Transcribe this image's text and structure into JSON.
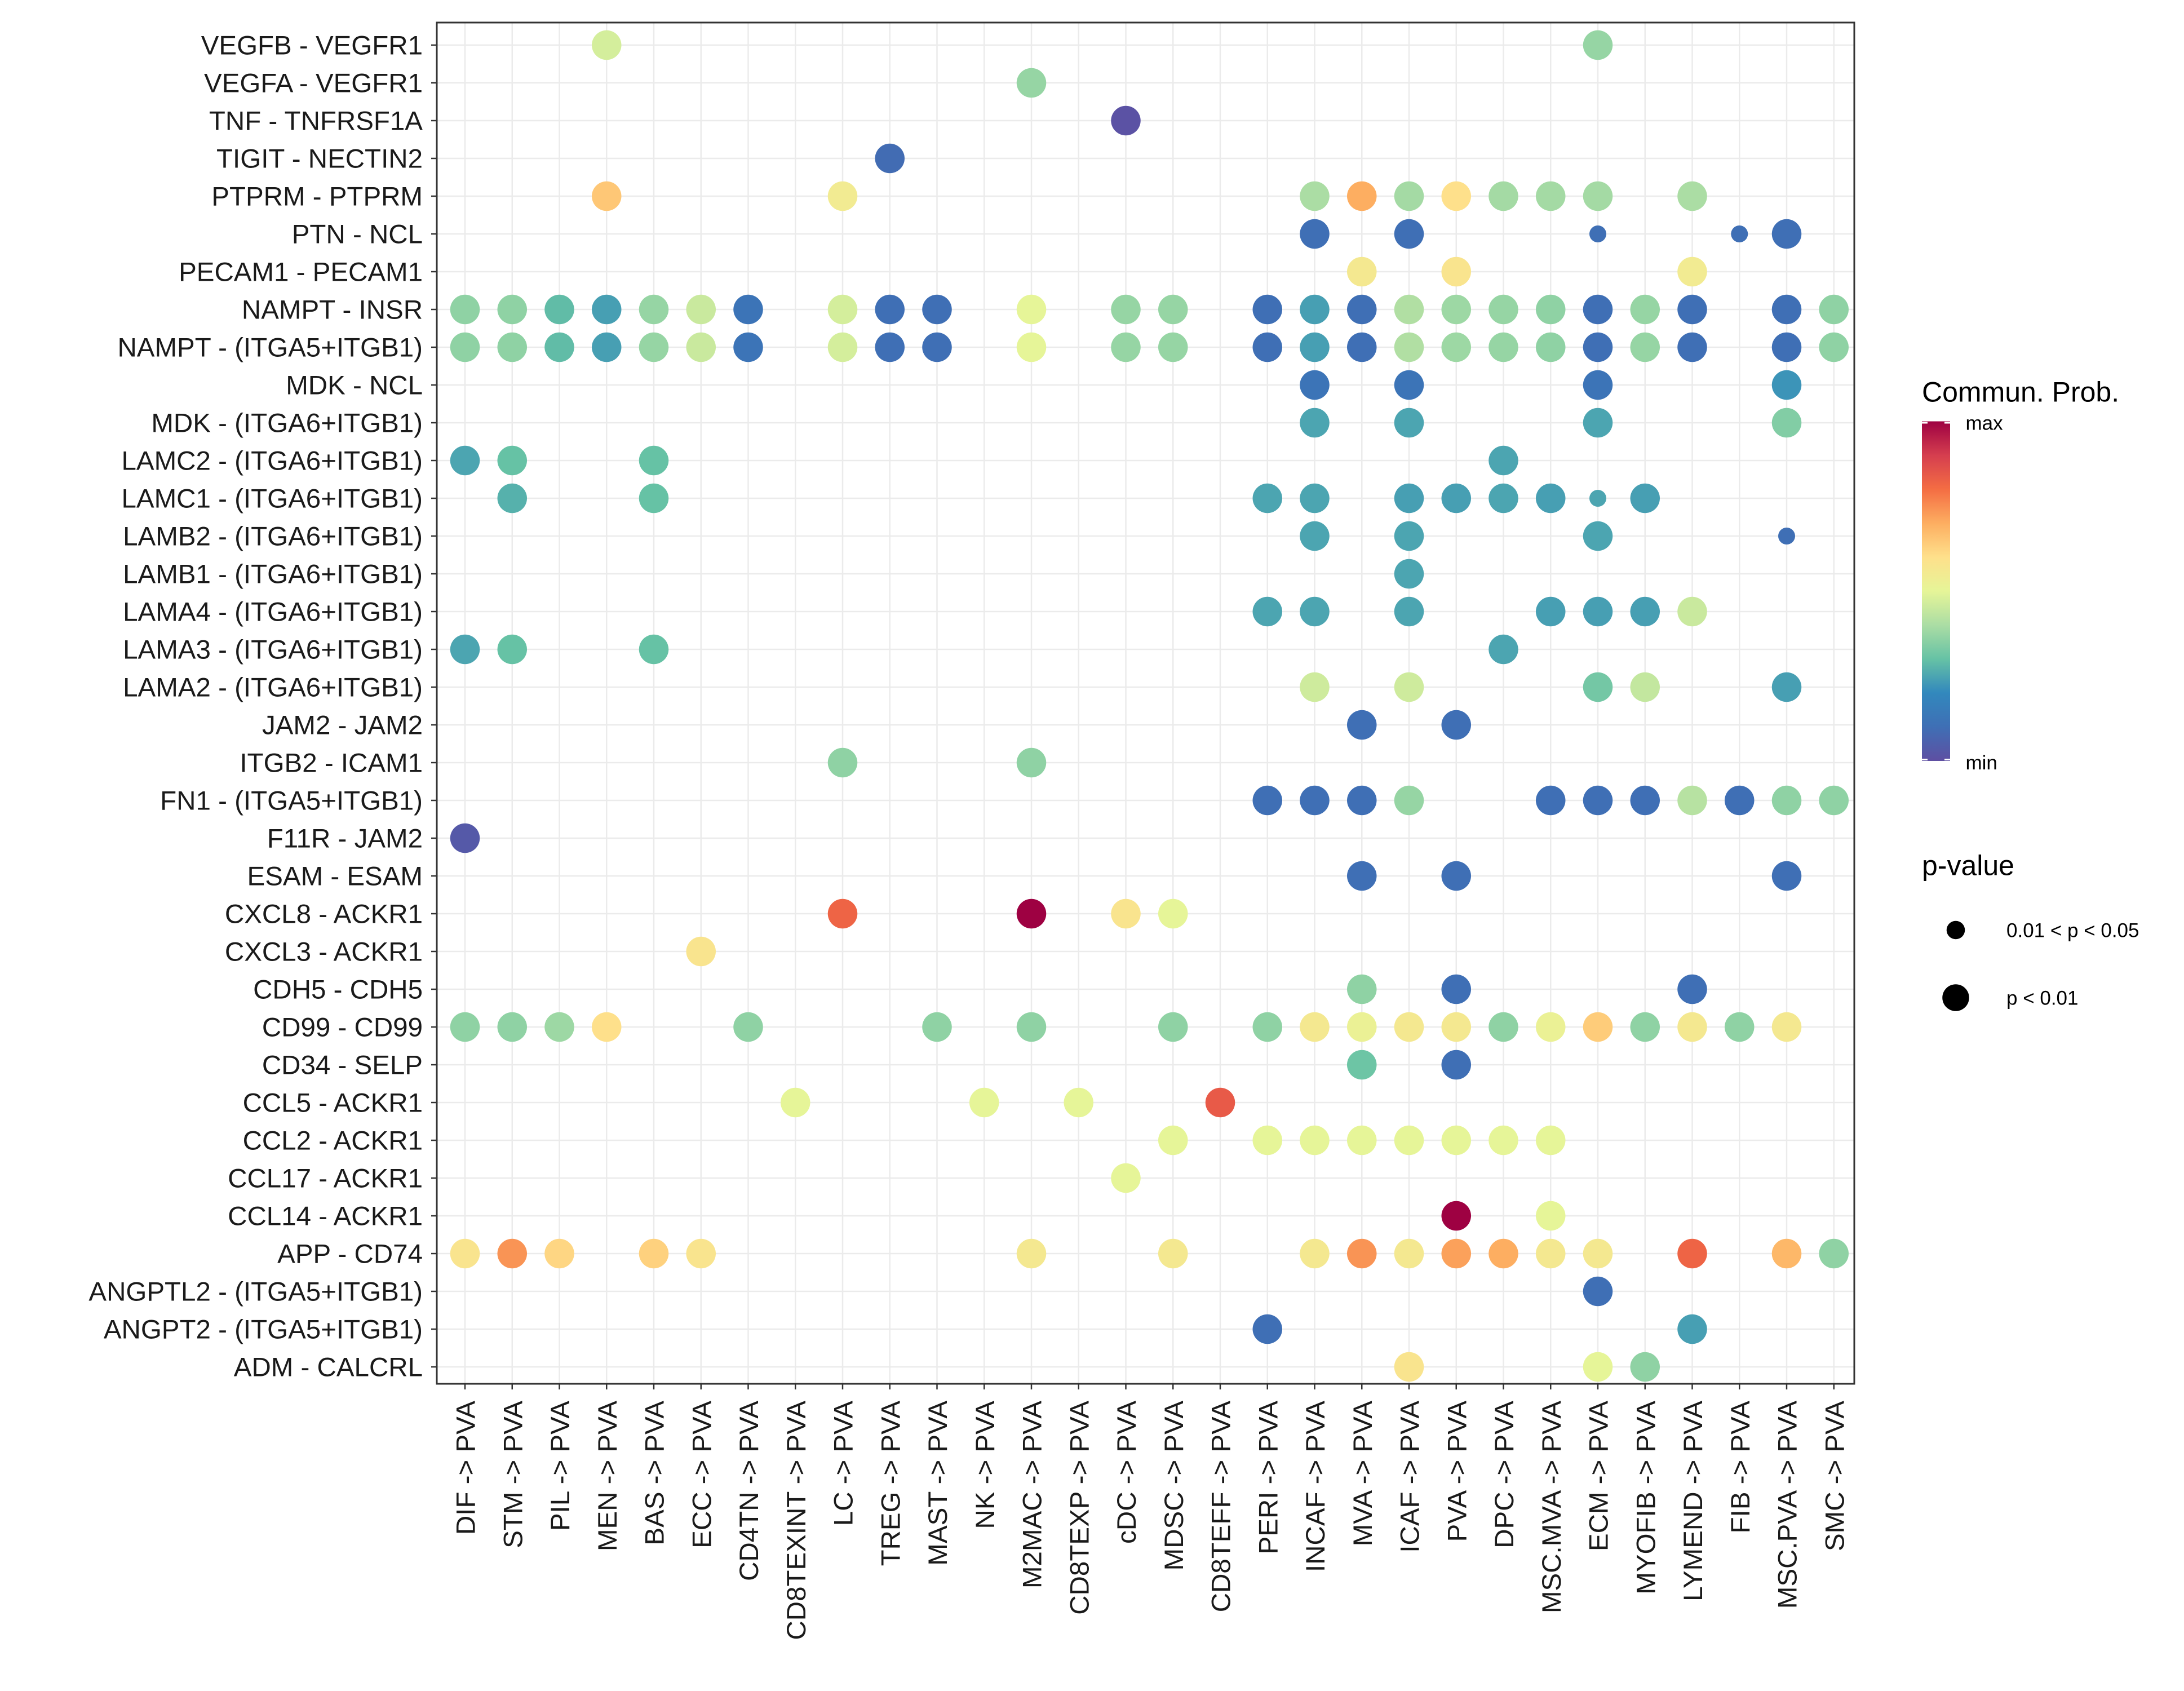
{
  "chart_data": {
    "type": "dotplot",
    "x_categories": [
      "DIF -> PVA",
      "STM -> PVA",
      "PIL -> PVA",
      "MEN -> PVA",
      "BAS -> PVA",
      "ECC -> PVA",
      "CD4TN -> PVA",
      "CD8TEXINT -> PVA",
      "LC -> PVA",
      "TREG -> PVA",
      "MAST -> PVA",
      "NK -> PVA",
      "M2MAC -> PVA",
      "CD8TEXP -> PVA",
      "cDC -> PVA",
      "MDSC -> PVA",
      "CD8TEFF -> PVA",
      "PERI -> PVA",
      "INCAF -> PVA",
      "MVA -> PVA",
      "ICAF -> PVA",
      "PVA -> PVA",
      "DPC -> PVA",
      "MSC.MVA -> PVA",
      "ECM -> PVA",
      "MYOFIB -> PVA",
      "LYMEND -> PVA",
      "FIB -> PVA",
      "MSC.PVA -> PVA",
      "SMC -> PVA"
    ],
    "y_categories": [
      "VEGFB - VEGFR1",
      "VEGFA - VEGFR1",
      "TNF - TNFRSF1A",
      "TIGIT - NECTIN2",
      "PTPRM - PTPRM",
      "PTN - NCL",
      "PECAM1 - PECAM1",
      "NAMPT - INSR",
      "NAMPT - (ITGA5+ITGB1)",
      "MDK - NCL",
      "MDK - (ITGA6+ITGB1)",
      "LAMC2 - (ITGA6+ITGB1)",
      "LAMC1 - (ITGA6+ITGB1)",
      "LAMB2 - (ITGA6+ITGB1)",
      "LAMB1 - (ITGA6+ITGB1)",
      "LAMA4 - (ITGA6+ITGB1)",
      "LAMA3 - (ITGA6+ITGB1)",
      "LAMA2 - (ITGA6+ITGB1)",
      "JAM2 - JAM2",
      "ITGB2 - ICAM1",
      "FN1 - (ITGA5+ITGB1)",
      "F11R - JAM2",
      "ESAM - ESAM",
      "CXCL8 - ACKR1",
      "CXCL3 - ACKR1",
      "CDH5 - CDH5",
      "CD99 - CD99",
      "CD34 - SELP",
      "CCL5 - ACKR1",
      "CCL2 - ACKR1",
      "CCL17 - ACKR1",
      "CCL14 - ACKR1",
      "APP - CD74",
      "ANGPTL2 - (ITGA5+ITGB1)",
      "ANGPT2 - (ITGA5+ITGB1)",
      "ADM - CALCRL"
    ],
    "point_fields": [
      "y_category_index",
      "x_category_index",
      "commun_prob_scaled_0_to_1",
      "pvalue_class_0_sig_1_highly_sig"
    ],
    "points": [
      [
        0,
        3,
        0.47,
        1
      ],
      [
        0,
        24,
        0.37,
        1
      ],
      [
        1,
        12,
        0.37,
        1
      ],
      [
        2,
        14,
        0.01,
        1
      ],
      [
        3,
        9,
        0.09,
        1
      ],
      [
        4,
        3,
        0.65,
        1
      ],
      [
        4,
        8,
        0.55,
        1
      ],
      [
        4,
        18,
        0.4,
        1
      ],
      [
        4,
        19,
        0.7,
        1
      ],
      [
        4,
        20,
        0.39,
        1
      ],
      [
        4,
        21,
        0.6,
        1
      ],
      [
        4,
        22,
        0.39,
        1
      ],
      [
        4,
        23,
        0.39,
        1
      ],
      [
        4,
        24,
        0.39,
        1
      ],
      [
        4,
        26,
        0.4,
        1
      ],
      [
        5,
        18,
        0.1,
        1
      ],
      [
        5,
        20,
        0.1,
        1
      ],
      [
        5,
        24,
        0.1,
        0
      ],
      [
        5,
        27,
        0.1,
        0
      ],
      [
        5,
        28,
        0.1,
        1
      ],
      [
        6,
        19,
        0.56,
        1
      ],
      [
        6,
        21,
        0.58,
        1
      ],
      [
        6,
        26,
        0.55,
        1
      ],
      [
        7,
        0,
        0.36,
        1
      ],
      [
        7,
        1,
        0.36,
        1
      ],
      [
        7,
        2,
        0.29,
        1
      ],
      [
        7,
        3,
        0.24,
        1
      ],
      [
        7,
        4,
        0.37,
        1
      ],
      [
        7,
        5,
        0.45,
        1
      ],
      [
        7,
        6,
        0.12,
        1
      ],
      [
        7,
        8,
        0.47,
        1
      ],
      [
        7,
        9,
        0.1,
        1
      ],
      [
        7,
        10,
        0.1,
        1
      ],
      [
        7,
        12,
        0.5,
        1
      ],
      [
        7,
        14,
        0.37,
        1
      ],
      [
        7,
        15,
        0.37,
        1
      ],
      [
        7,
        17,
        0.1,
        1
      ],
      [
        7,
        18,
        0.24,
        1
      ],
      [
        7,
        19,
        0.1,
        1
      ],
      [
        7,
        20,
        0.41,
        1
      ],
      [
        7,
        21,
        0.38,
        1
      ],
      [
        7,
        22,
        0.37,
        1
      ],
      [
        7,
        23,
        0.36,
        1
      ],
      [
        7,
        24,
        0.1,
        1
      ],
      [
        7,
        25,
        0.37,
        1
      ],
      [
        7,
        26,
        0.1,
        1
      ],
      [
        7,
        28,
        0.1,
        1
      ],
      [
        7,
        29,
        0.36,
        1
      ],
      [
        8,
        0,
        0.36,
        1
      ],
      [
        8,
        1,
        0.36,
        1
      ],
      [
        8,
        2,
        0.29,
        1
      ],
      [
        8,
        3,
        0.24,
        1
      ],
      [
        8,
        4,
        0.37,
        1
      ],
      [
        8,
        5,
        0.45,
        1
      ],
      [
        8,
        6,
        0.12,
        1
      ],
      [
        8,
        8,
        0.47,
        1
      ],
      [
        8,
        9,
        0.1,
        1
      ],
      [
        8,
        10,
        0.1,
        1
      ],
      [
        8,
        12,
        0.5,
        1
      ],
      [
        8,
        14,
        0.37,
        1
      ],
      [
        8,
        15,
        0.37,
        1
      ],
      [
        8,
        17,
        0.1,
        1
      ],
      [
        8,
        18,
        0.24,
        1
      ],
      [
        8,
        19,
        0.1,
        1
      ],
      [
        8,
        20,
        0.41,
        1
      ],
      [
        8,
        21,
        0.38,
        1
      ],
      [
        8,
        22,
        0.37,
        1
      ],
      [
        8,
        23,
        0.36,
        1
      ],
      [
        8,
        24,
        0.1,
        1
      ],
      [
        8,
        25,
        0.37,
        1
      ],
      [
        8,
        26,
        0.1,
        1
      ],
      [
        8,
        28,
        0.1,
        1
      ],
      [
        8,
        29,
        0.36,
        1
      ],
      [
        9,
        18,
        0.12,
        1
      ],
      [
        9,
        20,
        0.12,
        1
      ],
      [
        9,
        24,
        0.12,
        1
      ],
      [
        9,
        28,
        0.22,
        1
      ],
      [
        10,
        18,
        0.25,
        1
      ],
      [
        10,
        20,
        0.25,
        1
      ],
      [
        10,
        24,
        0.25,
        1
      ],
      [
        10,
        28,
        0.34,
        1
      ],
      [
        11,
        0,
        0.25,
        1
      ],
      [
        11,
        1,
        0.3,
        1
      ],
      [
        11,
        4,
        0.3,
        1
      ],
      [
        11,
        22,
        0.25,
        1
      ],
      [
        12,
        1,
        0.27,
        1
      ],
      [
        12,
        4,
        0.3,
        1
      ],
      [
        12,
        17,
        0.25,
        1
      ],
      [
        12,
        18,
        0.25,
        1
      ],
      [
        12,
        20,
        0.24,
        1
      ],
      [
        12,
        21,
        0.24,
        1
      ],
      [
        12,
        22,
        0.25,
        1
      ],
      [
        12,
        23,
        0.24,
        1
      ],
      [
        12,
        24,
        0.25,
        0
      ],
      [
        12,
        25,
        0.24,
        1
      ],
      [
        13,
        18,
        0.25,
        1
      ],
      [
        13,
        20,
        0.25,
        1
      ],
      [
        13,
        24,
        0.25,
        1
      ],
      [
        13,
        28,
        0.1,
        0
      ],
      [
        14,
        20,
        0.25,
        1
      ],
      [
        15,
        17,
        0.25,
        1
      ],
      [
        15,
        18,
        0.25,
        1
      ],
      [
        15,
        20,
        0.25,
        1
      ],
      [
        15,
        23,
        0.24,
        1
      ],
      [
        15,
        24,
        0.24,
        1
      ],
      [
        15,
        25,
        0.24,
        1
      ],
      [
        15,
        26,
        0.45,
        1
      ],
      [
        16,
        0,
        0.25,
        1
      ],
      [
        16,
        1,
        0.3,
        1
      ],
      [
        16,
        4,
        0.3,
        1
      ],
      [
        16,
        22,
        0.25,
        1
      ],
      [
        17,
        18,
        0.46,
        1
      ],
      [
        17,
        20,
        0.46,
        1
      ],
      [
        17,
        24,
        0.32,
        1
      ],
      [
        17,
        25,
        0.44,
        1
      ],
      [
        17,
        28,
        0.24,
        1
      ],
      [
        18,
        19,
        0.1,
        1
      ],
      [
        18,
        21,
        0.1,
        1
      ],
      [
        19,
        8,
        0.36,
        1
      ],
      [
        19,
        12,
        0.36,
        1
      ],
      [
        20,
        17,
        0.1,
        1
      ],
      [
        20,
        18,
        0.1,
        1
      ],
      [
        20,
        19,
        0.1,
        1
      ],
      [
        20,
        20,
        0.37,
        1
      ],
      [
        20,
        23,
        0.1,
        1
      ],
      [
        20,
        24,
        0.1,
        1
      ],
      [
        20,
        25,
        0.1,
        1
      ],
      [
        20,
        26,
        0.42,
        1
      ],
      [
        20,
        27,
        0.1,
        1
      ],
      [
        20,
        28,
        0.36,
        1
      ],
      [
        20,
        29,
        0.36,
        1
      ],
      [
        21,
        0,
        0.03,
        1
      ],
      [
        22,
        19,
        0.1,
        1
      ],
      [
        22,
        21,
        0.1,
        1
      ],
      [
        22,
        28,
        0.1,
        1
      ],
      [
        23,
        8,
        0.82,
        1
      ],
      [
        23,
        12,
        1.0,
        1
      ],
      [
        23,
        14,
        0.58,
        1
      ],
      [
        23,
        15,
        0.5,
        1
      ],
      [
        24,
        5,
        0.58,
        1
      ],
      [
        25,
        19,
        0.36,
        1
      ],
      [
        25,
        21,
        0.1,
        1
      ],
      [
        25,
        26,
        0.1,
        1
      ],
      [
        26,
        0,
        0.36,
        1
      ],
      [
        26,
        1,
        0.36,
        1
      ],
      [
        26,
        2,
        0.38,
        1
      ],
      [
        26,
        3,
        0.6,
        1
      ],
      [
        26,
        6,
        0.36,
        1
      ],
      [
        26,
        10,
        0.36,
        1
      ],
      [
        26,
        12,
        0.36,
        1
      ],
      [
        26,
        15,
        0.36,
        1
      ],
      [
        26,
        17,
        0.36,
        1
      ],
      [
        26,
        18,
        0.56,
        1
      ],
      [
        26,
        19,
        0.52,
        1
      ],
      [
        26,
        20,
        0.56,
        1
      ],
      [
        26,
        21,
        0.56,
        1
      ],
      [
        26,
        22,
        0.36,
        1
      ],
      [
        26,
        23,
        0.52,
        1
      ],
      [
        26,
        24,
        0.64,
        1
      ],
      [
        26,
        25,
        0.36,
        1
      ],
      [
        26,
        26,
        0.56,
        1
      ],
      [
        26,
        27,
        0.36,
        1
      ],
      [
        26,
        28,
        0.56,
        1
      ],
      [
        27,
        19,
        0.31,
        1
      ],
      [
        27,
        21,
        0.1,
        1
      ],
      [
        28,
        7,
        0.5,
        1
      ],
      [
        28,
        11,
        0.5,
        1
      ],
      [
        28,
        13,
        0.5,
        1
      ],
      [
        28,
        16,
        0.84,
        1
      ],
      [
        29,
        15,
        0.5,
        1
      ],
      [
        29,
        17,
        0.5,
        1
      ],
      [
        29,
        18,
        0.5,
        1
      ],
      [
        29,
        19,
        0.5,
        1
      ],
      [
        29,
        20,
        0.5,
        1
      ],
      [
        29,
        21,
        0.5,
        1
      ],
      [
        29,
        22,
        0.5,
        1
      ],
      [
        29,
        23,
        0.5,
        1
      ],
      [
        30,
        14,
        0.5,
        1
      ],
      [
        31,
        21,
        1.0,
        1
      ],
      [
        31,
        23,
        0.5,
        1
      ],
      [
        32,
        0,
        0.58,
        1
      ],
      [
        32,
        1,
        0.74,
        1
      ],
      [
        32,
        2,
        0.62,
        1
      ],
      [
        32,
        4,
        0.63,
        1
      ],
      [
        32,
        5,
        0.58,
        1
      ],
      [
        32,
        12,
        0.56,
        1
      ],
      [
        32,
        15,
        0.56,
        1
      ],
      [
        32,
        18,
        0.56,
        1
      ],
      [
        32,
        19,
        0.74,
        1
      ],
      [
        32,
        20,
        0.56,
        1
      ],
      [
        32,
        21,
        0.72,
        1
      ],
      [
        32,
        22,
        0.7,
        1
      ],
      [
        32,
        23,
        0.56,
        1
      ],
      [
        32,
        24,
        0.56,
        1
      ],
      [
        32,
        26,
        0.82,
        1
      ],
      [
        32,
        28,
        0.68,
        1
      ],
      [
        32,
        29,
        0.36,
        1
      ],
      [
        33,
        24,
        0.1,
        1
      ],
      [
        34,
        17,
        0.1,
        1
      ],
      [
        34,
        26,
        0.24,
        1
      ],
      [
        35,
        20,
        0.58,
        1
      ],
      [
        35,
        24,
        0.5,
        1
      ],
      [
        35,
        25,
        0.36,
        1
      ]
    ],
    "color_scale": {
      "title": "Commun. Prob.",
      "max_label": "max",
      "min_label": "min",
      "stops": [
        "#5E4FA2",
        "#3F6FB5",
        "#3288BD",
        "#66C2A5",
        "#ABDDA4",
        "#E6F598",
        "#FEE08B",
        "#FDAE61",
        "#F46D43",
        "#D53E4F",
        "#9E0142"
      ]
    },
    "size_legend": {
      "title": "p-value",
      "entries": [
        "0.01 < p < 0.05",
        "p < 0.01"
      ]
    },
    "grid": true,
    "legend_position": "right"
  }
}
